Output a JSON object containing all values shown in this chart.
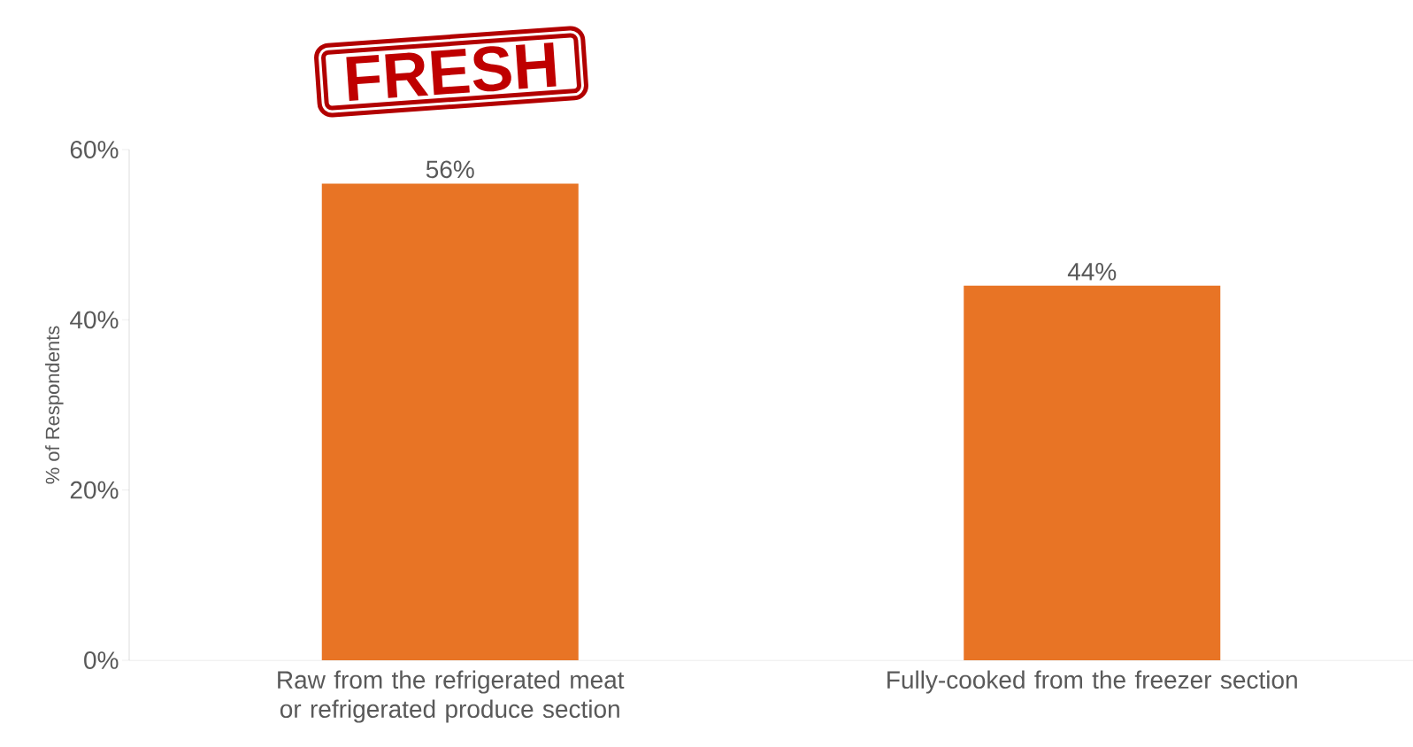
{
  "chart_data": {
    "type": "bar",
    "ylabel": "% of Respondents",
    "categories": [
      "Raw from the refrigerated meat or refrigerated produce section",
      "Fully-cooked from the freezer section"
    ],
    "values": [
      56,
      44
    ],
    "color": "#e87425",
    "ylim": [
      0,
      60
    ],
    "yticks": [
      {
        "value": 0,
        "label": "0%"
      },
      {
        "value": 20,
        "label": "20%"
      },
      {
        "value": 40,
        "label": "40%"
      },
      {
        "value": 60,
        "label": "60%"
      }
    ],
    "value_labels": [
      "56%",
      "44%"
    ],
    "annotations": [
      "FRESH"
    ],
    "grid": false
  }
}
